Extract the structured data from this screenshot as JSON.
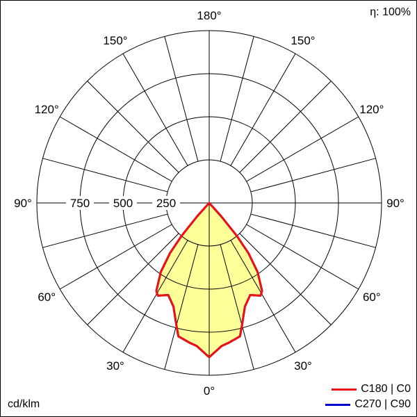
{
  "chart_data": {
    "type": "polar",
    "efficiency_label": "η: 100%",
    "unit_label": "cd/klm",
    "radial_ticks": [
      250,
      500,
      750
    ],
    "radial_max": 1000,
    "angle_labels": [
      "180°",
      "150°",
      "150°",
      "120°",
      "120°",
      "90°",
      "90°",
      "60°",
      "60°",
      "30°",
      "30°",
      "0°"
    ],
    "grid": true,
    "legend_position": "bottom-right",
    "series": [
      {
        "name": "C270 | C90",
        "color": "#0000cc",
        "angles": [
          0,
          5,
          8,
          13,
          15,
          19,
          24,
          29,
          31,
          35,
          38,
          40,
          42,
          45,
          90,
          180
        ],
        "values": [
          895,
          833,
          819,
          794,
          735,
          636,
          585,
          615,
          596,
          489,
          370,
          249,
          103,
          0,
          0,
          0
        ]
      },
      {
        "name": "C180 | C0",
        "color": "#ee1111",
        "fill": "#ffff99",
        "angles": [
          0,
          5,
          8,
          13,
          15,
          19,
          24,
          29,
          31,
          35,
          38,
          40,
          42,
          45,
          90,
          180
        ],
        "values": [
          895,
          833,
          819,
          794,
          735,
          636,
          585,
          615,
          596,
          489,
          370,
          249,
          103,
          0,
          0,
          0
        ]
      }
    ]
  }
}
